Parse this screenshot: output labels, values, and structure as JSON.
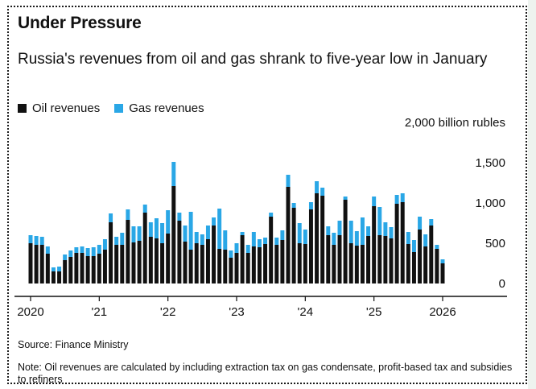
{
  "header": {
    "title": "Under Pressure",
    "subtitle": "Russia's revenues from oil and gas shrank to five-year low in January"
  },
  "footer": {
    "source": "Source: Finance Ministry",
    "note": "Note: Oil revenues are calculated by including extraction tax on gas condensate, profit-based tax and subsidies to refiners"
  },
  "colors": {
    "oil": "#111111",
    "gas": "#2aa7e6"
  },
  "chart_data": {
    "type": "bar",
    "stacked": true,
    "title": "Under Pressure",
    "subtitle": "Russia's revenues from oil and gas shrank to five-year low in January",
    "ylabel": "",
    "y_unit_label": "2,000 billion rubles",
    "ylim": [
      0,
      2000
    ],
    "y_ticks": [
      {
        "value": 0,
        "label": "0"
      },
      {
        "value": 500,
        "label": "500"
      },
      {
        "value": 1000,
        "label": "1,000"
      },
      {
        "value": 1500,
        "label": "1,500"
      },
      {
        "value": 2000,
        "label": "2,000 billion rubles"
      }
    ],
    "x_ticks": [
      "2020",
      "'21",
      "'22",
      "'23",
      "'24",
      "'25",
      "2026"
    ],
    "legend": {
      "position": "top-left",
      "entries": [
        "Oil revenues",
        "Gas revenues"
      ]
    },
    "grid": false,
    "categories": [
      "2020-01",
      "2020-02",
      "2020-03",
      "2020-04",
      "2020-05",
      "2020-06",
      "2020-07",
      "2020-08",
      "2020-09",
      "2020-10",
      "2020-11",
      "2020-12",
      "2021-01",
      "2021-02",
      "2021-03",
      "2021-04",
      "2021-05",
      "2021-06",
      "2021-07",
      "2021-08",
      "2021-09",
      "2021-10",
      "2021-11",
      "2021-12",
      "2022-01",
      "2022-02",
      "2022-03",
      "2022-04",
      "2022-05",
      "2022-06",
      "2022-07",
      "2022-08",
      "2022-09",
      "2022-10",
      "2022-11",
      "2022-12",
      "2023-01",
      "2023-02",
      "2023-03",
      "2023-04",
      "2023-05",
      "2023-06",
      "2023-07",
      "2023-08",
      "2023-09",
      "2023-10",
      "2023-11",
      "2023-12",
      "2024-01",
      "2024-02",
      "2024-03",
      "2024-04",
      "2024-05",
      "2024-06",
      "2024-07",
      "2024-08",
      "2024-09",
      "2024-10",
      "2024-11",
      "2024-12",
      "2025-01",
      "2025-02",
      "2025-03",
      "2025-04",
      "2025-05",
      "2025-06",
      "2025-07",
      "2025-08",
      "2025-09",
      "2025-10",
      "2025-11",
      "2025-12",
      "2026-01"
    ],
    "series": [
      {
        "name": "Oil revenues",
        "values": [
          500,
          480,
          480,
          370,
          150,
          150,
          290,
          330,
          380,
          380,
          340,
          340,
          370,
          420,
          760,
          480,
          480,
          790,
          510,
          530,
          880,
          580,
          560,
          500,
          620,
          1210,
          780,
          520,
          420,
          500,
          480,
          550,
          720,
          430,
          420,
          320,
          380,
          600,
          380,
          460,
          450,
          490,
          830,
          480,
          540,
          1200,
          940,
          500,
          490,
          920,
          1120,
          1090,
          600,
          480,
          600,
          1040,
          500,
          470,
          480,
          590,
          960,
          600,
          590,
          560,
          990,
          1010,
          490,
          390,
          670,
          460,
          720,
          430,
          250
        ]
      },
      {
        "name": "Gas revenues",
        "values": [
          100,
          110,
          100,
          90,
          50,
          60,
          70,
          80,
          70,
          80,
          100,
          110,
          110,
          130,
          110,
          100,
          150,
          130,
          200,
          180,
          100,
          180,
          250,
          250,
          290,
          300,
          100,
          200,
          470,
          140,
          130,
          170,
          100,
          500,
          240,
          90,
          120,
          40,
          100,
          180,
          100,
          80,
          50,
          90,
          120,
          150,
          60,
          250,
          180,
          90,
          150,
          100,
          110,
          150,
          180,
          40,
          280,
          180,
          340,
          120,
          120,
          350,
          170,
          140,
          110,
          110,
          150,
          150,
          160,
          150,
          80,
          50,
          50
        ]
      }
    ]
  }
}
